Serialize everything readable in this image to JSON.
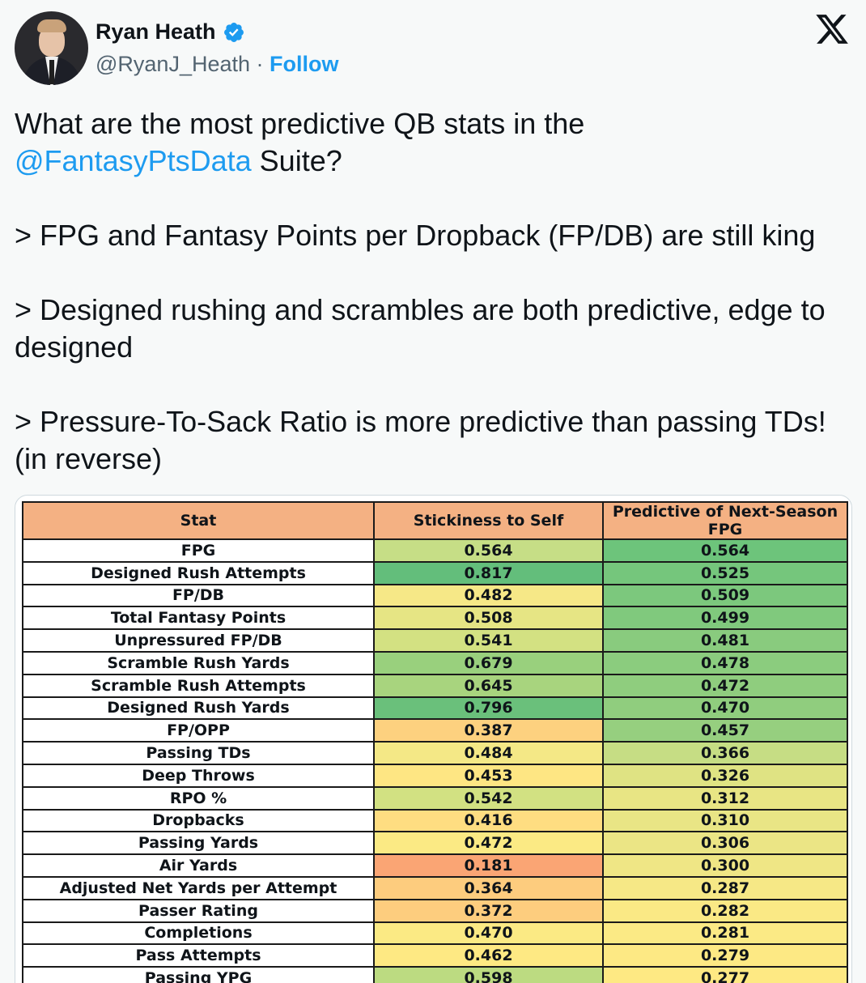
{
  "author": {
    "name": "Ryan Heath",
    "handle": "@RyanJ_Heath",
    "separator": "·",
    "follow_label": "Follow",
    "verified_icon": "verified-badge-icon",
    "verified_color": "#1d9bf0"
  },
  "logo_icon": "x-logo-icon",
  "tweet": {
    "line1a": "What are the most predictive QB stats in the",
    "mention": "@FantasyPtsData",
    "line1b": " Suite?",
    "p2": "> FPG and Fantasy Points per Dropback (FP/DB) are still king",
    "p3": "> Designed rushing and scrambles are both predictive, edge to designed",
    "p4": "> Pressure-To-Sack Ratio is more predictive than passing TDs! (in reverse)"
  },
  "chart_data": {
    "type": "table",
    "columns": [
      "Stat",
      "Stickiness to Self",
      "Predictive of Next-Season FPG"
    ],
    "rows": [
      {
        "stat": "FPG",
        "stickiness": "0.564",
        "predictive": "0.564",
        "c1": "#c6de86",
        "c2": "#6dc47b"
      },
      {
        "stat": "Designed Rush Attempts",
        "stickiness": "0.817",
        "predictive": "0.525",
        "c1": "#63be7b",
        "c2": "#75c67c"
      },
      {
        "stat": "FP/DB",
        "stickiness": "0.482",
        "predictive": "0.509",
        "c1": "#f6e887",
        "c2": "#7cc87d"
      },
      {
        "stat": "Total Fantasy Points",
        "stickiness": "0.508",
        "predictive": "0.499",
        "c1": "#e6e584",
        "c2": "#80c97d"
      },
      {
        "stat": "Unpressured FP/DB",
        "stickiness": "0.541",
        "predictive": "0.481",
        "c1": "#d3e182",
        "c2": "#89cb7e"
      },
      {
        "stat": "Scramble Rush Yards",
        "stickiness": "0.679",
        "predictive": "0.478",
        "c1": "#99d07d",
        "c2": "#8bcc7e"
      },
      {
        "stat": "Scramble Rush Attempts",
        "stickiness": "0.645",
        "predictive": "0.472",
        "c1": "#a8d47e",
        "c2": "#8fcd7e"
      },
      {
        "stat": "Designed Rush Yards",
        "stickiness": "0.796",
        "predictive": "0.470",
        "c1": "#6ac07b",
        "c2": "#90cd7e"
      },
      {
        "stat": "FP/OPP",
        "stickiness": "0.387",
        "predictive": "0.457",
        "c1": "#fdd17f",
        "c2": "#96cf7f"
      },
      {
        "stat": "Passing TDs",
        "stickiness": "0.484",
        "predictive": "0.366",
        "c1": "#f4e886",
        "c2": "#c6dd84"
      },
      {
        "stat": "Deep Throws",
        "stickiness": "0.453",
        "predictive": "0.326",
        "c1": "#fee683",
        "c2": "#dfe383"
      },
      {
        "stat": "RPO %",
        "stickiness": "0.542",
        "predictive": "0.312",
        "c1": "#d2e182",
        "c2": "#e8e584"
      },
      {
        "stat": "Dropbacks",
        "stickiness": "0.416",
        "predictive": "0.310",
        "c1": "#fedd81",
        "c2": "#e9e585"
      },
      {
        "stat": "Passing Yards",
        "stickiness": "0.472",
        "predictive": "0.306",
        "c1": "#fbea84",
        "c2": "#ebe585"
      },
      {
        "stat": "Air Yards",
        "stickiness": "0.181",
        "predictive": "0.300",
        "c1": "#faa574",
        "c2": "#efe685"
      },
      {
        "stat": "Adjusted Net Yards per Attempt",
        "stickiness": "0.364",
        "predictive": "0.287",
        "c1": "#fdcc7e",
        "c2": "#f6e886"
      },
      {
        "stat": "Passer Rating",
        "stickiness": "0.372",
        "predictive": "0.282",
        "c1": "#fdcd7e",
        "c2": "#fae985"
      },
      {
        "stat": "Completions",
        "stickiness": "0.470",
        "predictive": "0.281",
        "c1": "#fbea84",
        "c2": "#fbea85"
      },
      {
        "stat": "Pass Attempts",
        "stickiness": "0.462",
        "predictive": "0.279",
        "c1": "#fee983",
        "c2": "#fde984"
      },
      {
        "stat": "Passing YPG",
        "stickiness": "0.598",
        "predictive": "0.277",
        "c1": "#bcdb81",
        "c2": "#fee983"
      }
    ]
  }
}
